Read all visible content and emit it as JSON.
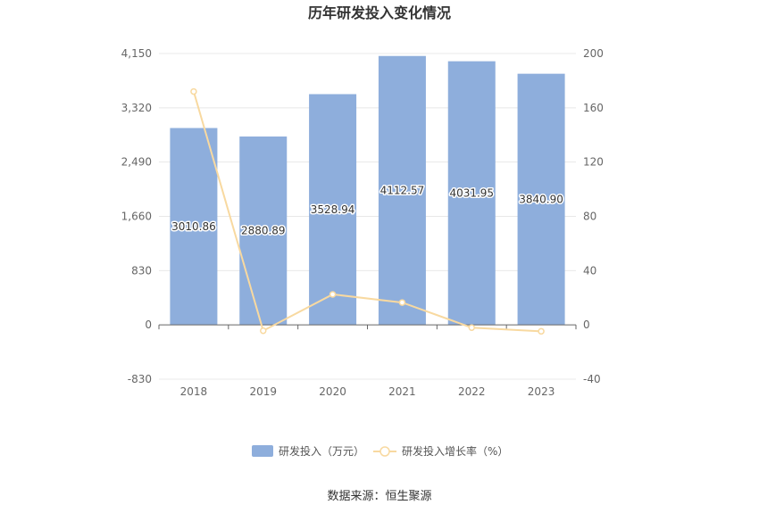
{
  "chart_data": {
    "type": "bar",
    "title": "历年研发投入变化情况",
    "categories": [
      "2018",
      "2019",
      "2020",
      "2021",
      "2022",
      "2023"
    ],
    "series": [
      {
        "name": "研发投入（万元）",
        "type": "bar",
        "axis": "left",
        "color": "#8eaedc",
        "values": [
          3010.86,
          2880.89,
          3528.94,
          4112.57,
          4031.95,
          3840.9
        ],
        "labels": [
          "3010.86",
          "2880.89",
          "3528.94",
          "4112.57",
          "4031.95",
          "3840.90"
        ]
      },
      {
        "name": "研发投入增长率（%）",
        "type": "line",
        "axis": "right",
        "color": "#f8d9a0",
        "values": [
          172,
          -4.3,
          22.5,
          16.5,
          -2,
          -4.7
        ]
      }
    ],
    "y_left": {
      "min": -830,
      "max": 4150,
      "ticks": [
        "4,150",
        "3,320",
        "2,490",
        "1,660",
        "830",
        "0",
        "-830"
      ],
      "tick_values": [
        4150,
        3320,
        2490,
        1660,
        830,
        0,
        -830
      ]
    },
    "y_right": {
      "min": -40,
      "max": 200,
      "ticks": [
        "200",
        "160",
        "120",
        "80",
        "40",
        "0",
        "-40"
      ],
      "tick_values": [
        200,
        160,
        120,
        80,
        40,
        0,
        -40
      ]
    },
    "grid": true,
    "legend_position": "bottom"
  },
  "footer": {
    "source": "数据来源：恒生聚源"
  }
}
